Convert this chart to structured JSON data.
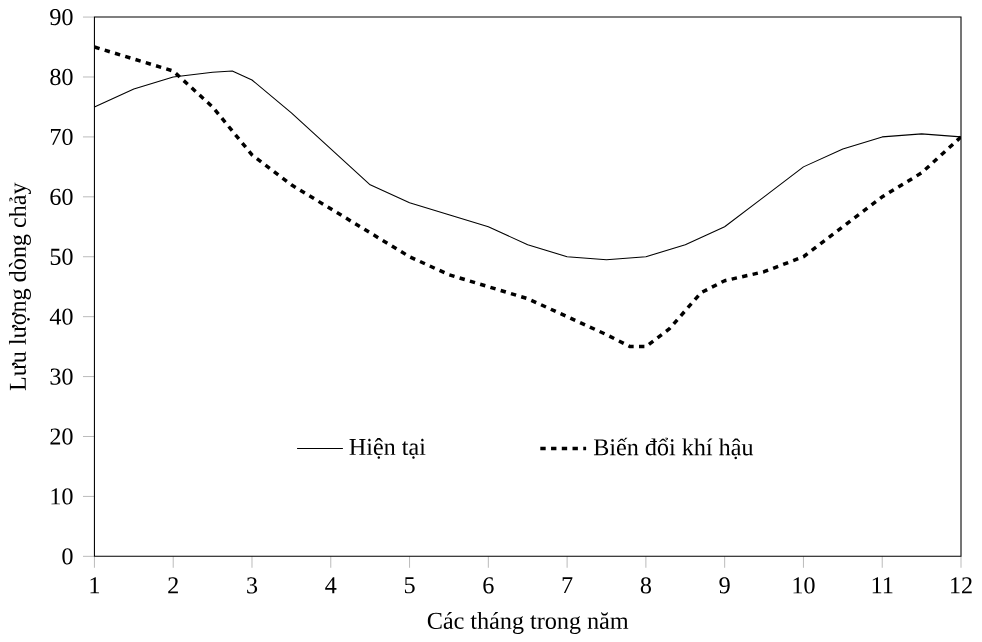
{
  "chart_data": {
    "type": "line",
    "xlabel": "Các tháng trong năm",
    "ylabel": "Lưu lượng dòng chảy",
    "xlim": [
      1,
      12
    ],
    "ylim": [
      0,
      90
    ],
    "xticks": [
      1,
      2,
      3,
      4,
      5,
      6,
      7,
      8,
      9,
      10,
      11,
      12
    ],
    "yticks": [
      0,
      10,
      20,
      30,
      40,
      50,
      60,
      70,
      80,
      90
    ],
    "grid": false,
    "legend": "bottom",
    "marker": "none",
    "series": [
      {
        "name": "Hiện tại",
        "color": "#000000",
        "line_style": "solid",
        "x": [
          1,
          1.5,
          2,
          2.5,
          2.75,
          3,
          3.5,
          4,
          4.5,
          5,
          5.5,
          6,
          6.5,
          7,
          7.5,
          8,
          8.5,
          9,
          9.5,
          10,
          10.5,
          11,
          11.5,
          12
        ],
        "values": [
          75,
          78,
          80,
          80.8,
          81,
          79.5,
          74,
          68,
          62,
          59,
          57,
          55,
          52,
          50,
          49.5,
          50,
          52,
          55,
          60,
          65,
          68,
          70,
          70.5,
          70
        ]
      },
      {
        "name": "Biến đổi khí hậu",
        "color": "#000000",
        "line_style": "dotted",
        "x": [
          1,
          1.5,
          2,
          2.5,
          3,
          3.5,
          4,
          4.5,
          5,
          5.5,
          6,
          6.5,
          7,
          7.5,
          7.8,
          8,
          8.3,
          8.7,
          9,
          9.5,
          10,
          10.5,
          11,
          11.5,
          12
        ],
        "values": [
          85,
          83,
          81,
          75,
          67,
          62,
          58,
          54,
          50,
          47,
          45,
          43,
          40,
          37,
          35,
          35,
          38,
          44,
          46,
          47.5,
          50,
          55,
          60,
          64,
          70
        ]
      }
    ]
  }
}
